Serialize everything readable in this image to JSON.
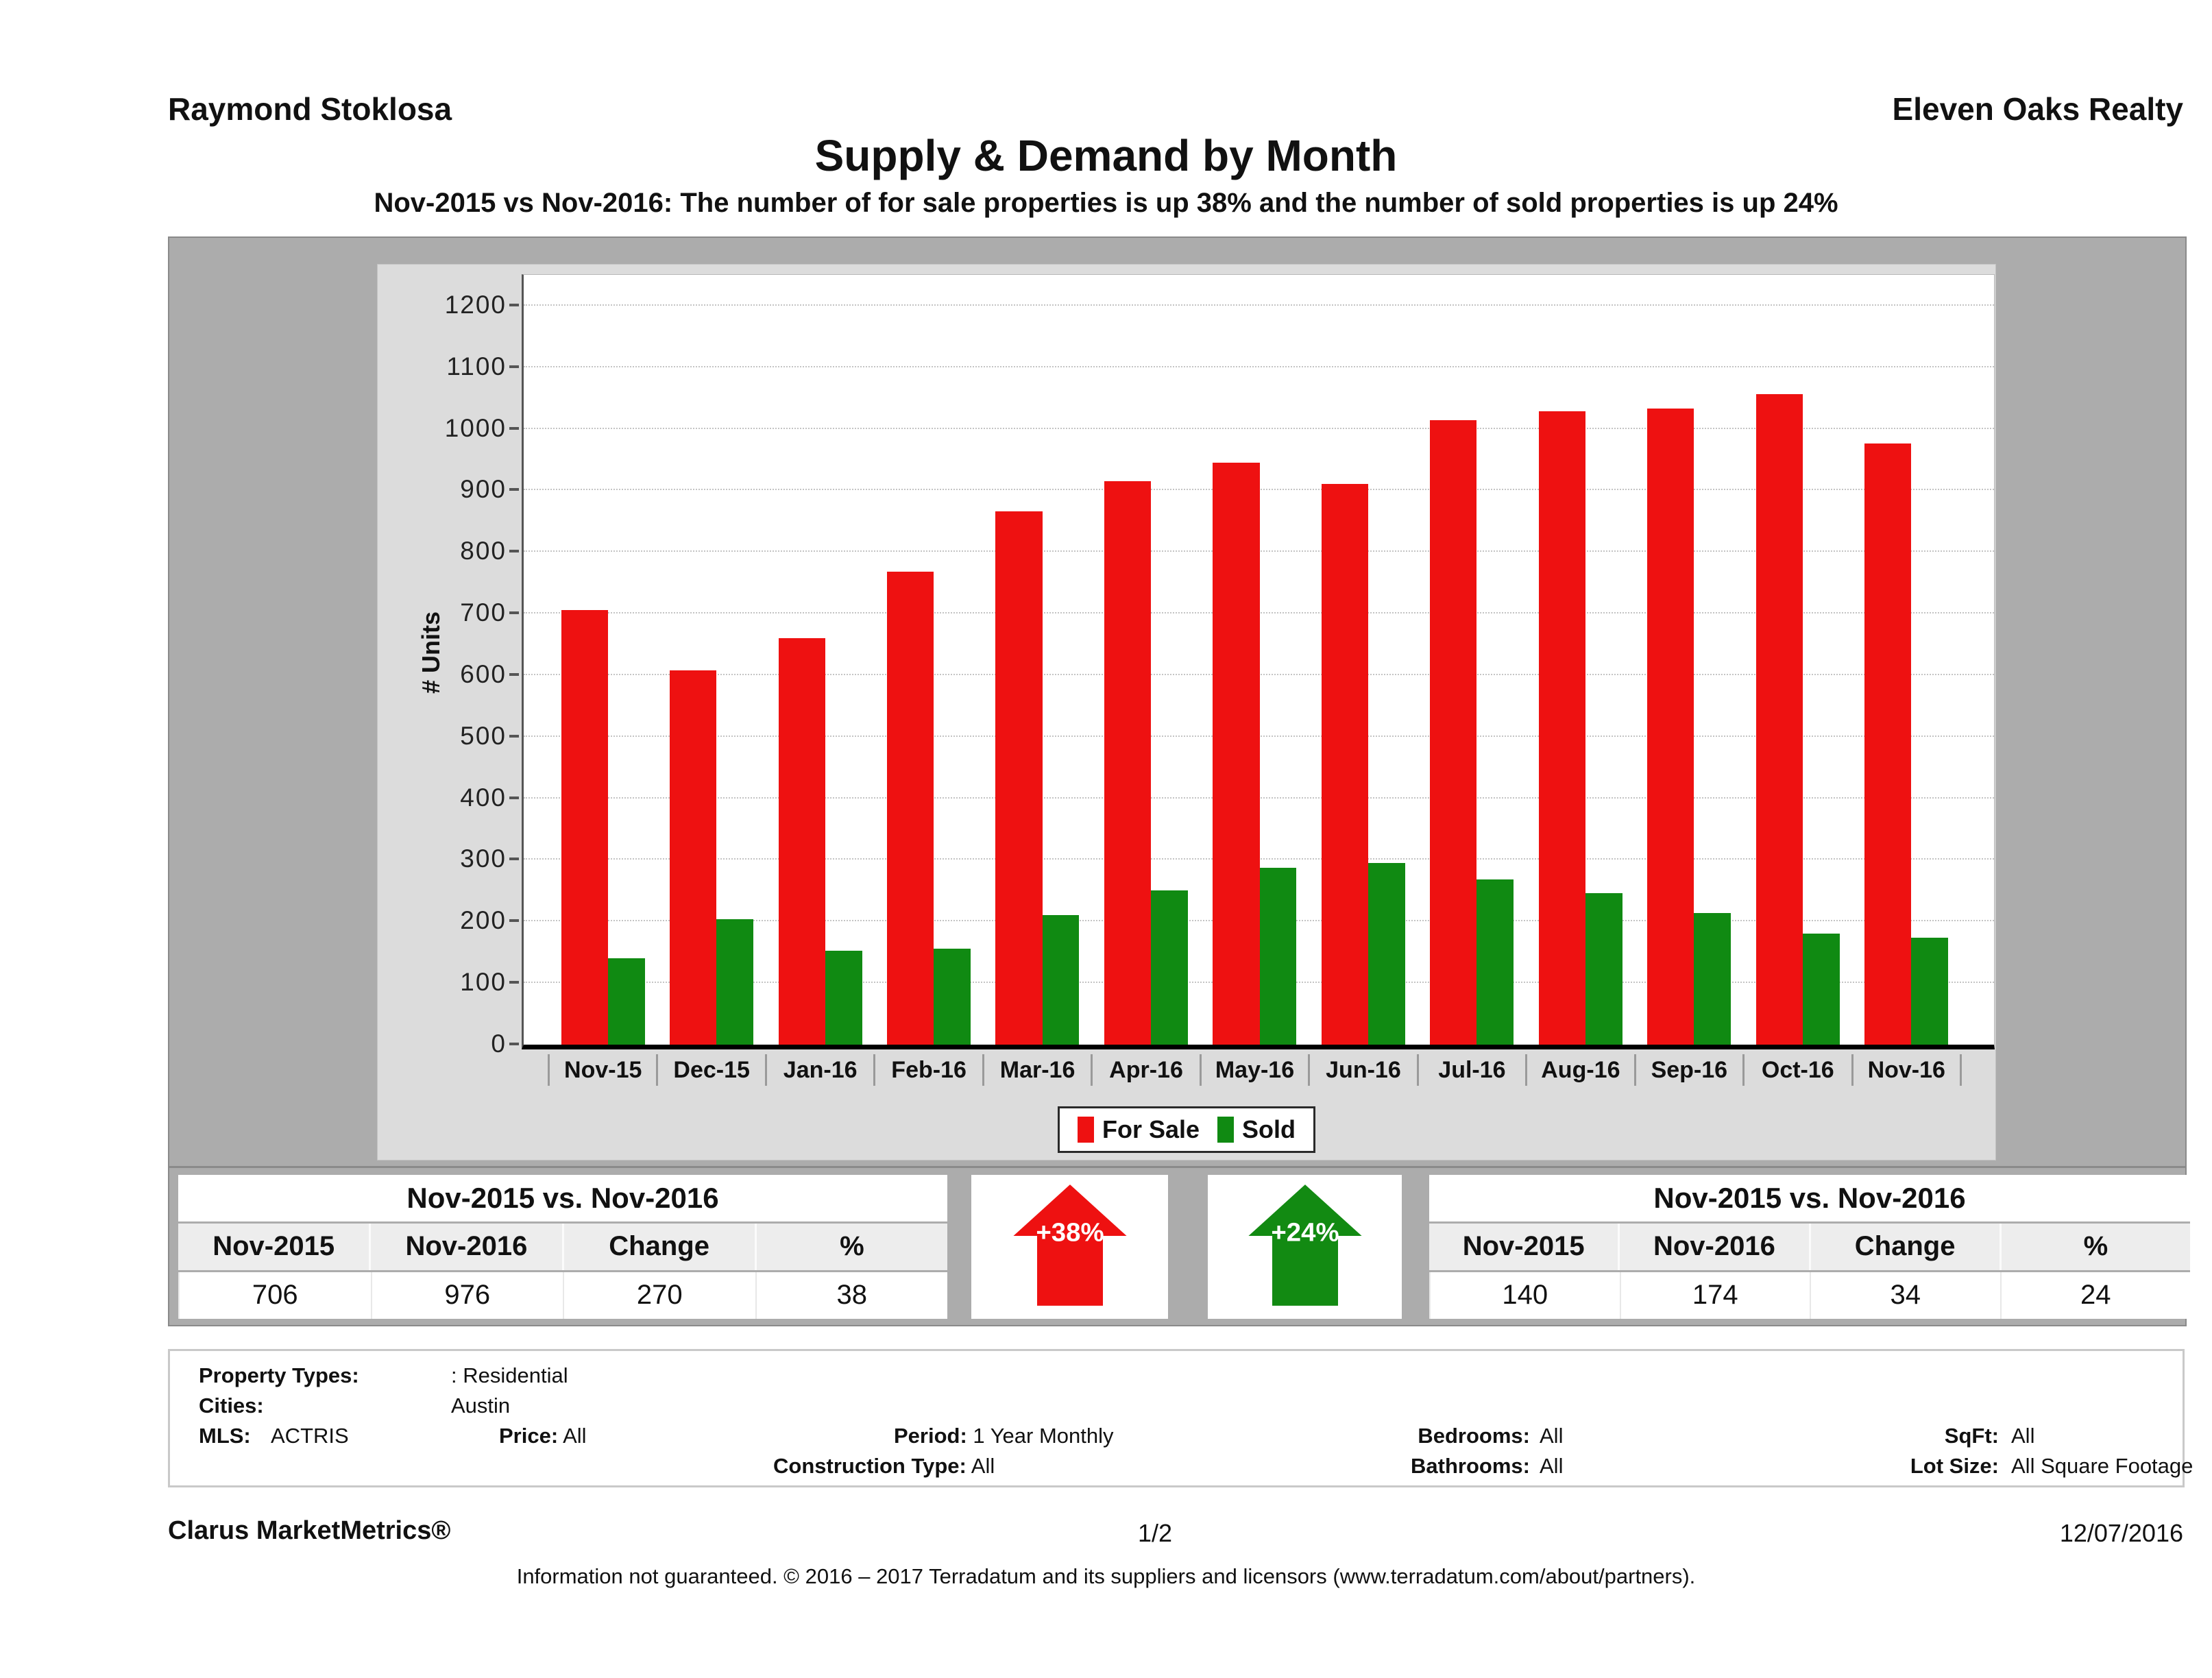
{
  "header": {
    "agent": "Raymond Stoklosa",
    "company": "Eleven Oaks Realty",
    "title": "Supply & Demand by Month",
    "subtitle": "Nov-2015 vs Nov-2016: The number of for sale properties is up 38% and the number of sold properties is up 24%"
  },
  "chart_data": {
    "type": "bar",
    "title": "Supply & Demand by Month",
    "ylabel": "# Units",
    "ylim": [
      0,
      1250
    ],
    "yticks": [
      0,
      100,
      200,
      300,
      400,
      500,
      600,
      700,
      800,
      900,
      1000,
      1100,
      1200
    ],
    "grid": true,
    "legend_position": "bottom",
    "categories": [
      "Nov-15",
      "Dec-15",
      "Jan-16",
      "Feb-16",
      "Mar-16",
      "Apr-16",
      "May-16",
      "Jun-16",
      "Jul-16",
      "Aug-16",
      "Sep-16",
      "Oct-16",
      "Nov-16"
    ],
    "series": [
      {
        "name": "For Sale",
        "color": "#ee1111",
        "values": [
          706,
          608,
          660,
          768,
          866,
          915,
          945,
          910,
          1014,
          1028,
          1033,
          1056,
          976
        ]
      },
      {
        "name": "Sold",
        "color": "#108a12",
        "values": [
          140,
          204,
          152,
          156,
          210,
          251,
          287,
          295,
          268,
          246,
          214,
          180,
          174
        ]
      }
    ]
  },
  "comparison_left": {
    "title": "Nov-2015 vs. Nov-2016",
    "headers": [
      "Nov-2015",
      "Nov-2016",
      "Change",
      "%"
    ],
    "values": [
      "706",
      "976",
      "270",
      "38"
    ]
  },
  "comparison_right": {
    "title": "Nov-2015 vs. Nov-2016",
    "headers": [
      "Nov-2015",
      "Nov-2016",
      "Change",
      "%"
    ],
    "values": [
      "140",
      "174",
      "34",
      "24"
    ]
  },
  "arrows": [
    {
      "label": "+38%",
      "color": "#ee1111",
      "direction": "up"
    },
    {
      "label": "+24%",
      "color": "#128a12",
      "direction": "up"
    }
  ],
  "filters": {
    "property_types": {
      "label": "Property Types:",
      "value": ": Residential"
    },
    "cities": {
      "label": "Cities:",
      "value": "Austin"
    },
    "mls": {
      "label": "MLS:",
      "value": "ACTRIS"
    },
    "price": {
      "label": "Price:",
      "value": "All"
    },
    "period": {
      "label": "Period:",
      "value": "1 Year Monthly"
    },
    "construction_type": {
      "label": "Construction Type:",
      "value": "All"
    },
    "bedrooms": {
      "label": "Bedrooms:",
      "value": "All"
    },
    "bathrooms": {
      "label": "Bathrooms:",
      "value": "All"
    },
    "sqft": {
      "label": "SqFt:",
      "value": "All"
    },
    "lot_size": {
      "label": "Lot Size:",
      "value": "All Square Footage"
    }
  },
  "footer": {
    "brand": "Clarus MarketMetrics®",
    "page": "1/2",
    "date": "12/07/2016",
    "disclaimer": "Information not guaranteed. © 2016 – 2017 Terradatum and its suppliers and licensors (www.terradatum.com/about/partners)."
  }
}
